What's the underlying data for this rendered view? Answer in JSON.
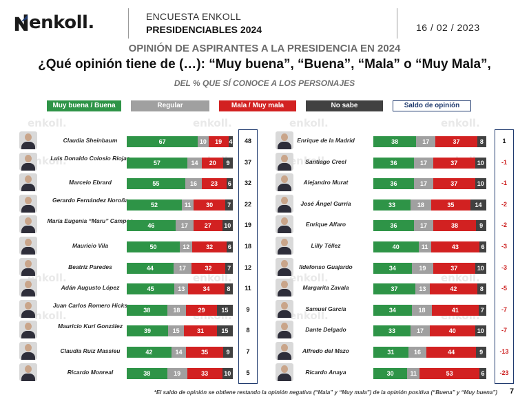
{
  "header": {
    "brand": "enkoll.",
    "survey_line1": "ENCUESTA ENKOLL",
    "survey_line2": "PRESIDENCIABLES 2024",
    "date": "16 / 02 / 2023"
  },
  "titles": {
    "line1": "OPINIÓN DE ASPIRANTES A LA PRESIDENCIA EN 2024",
    "line2": "¿Qué opinión tiene de (…): “Muy buena”, “Buena”, “Mala” o “Muy Mala”,",
    "line3": "DEL % QUE SÍ CONOCE A LOS PERSONAJES"
  },
  "legend": {
    "good": "Muy buena / Buena",
    "regular": "Regular",
    "bad": "Mala / Muy mala",
    "unknown": "No sabe",
    "saldo": "Saldo de opinión"
  },
  "colors": {
    "good": "#2e9447",
    "regular": "#a0a0a0",
    "bad": "#d22121",
    "unknown": "#414141",
    "saldo_border": "#1f3a6e",
    "negative_text": "#cc1c1c"
  },
  "watermark": "enkoll.",
  "footnote": "*El saldo de opinión se obtiene restando la opinión negativa (“Mala” y “Muy mala”) de la opinión positiva (“Buena” y “Muy buena”)",
  "page_number": "7",
  "chart_data": {
    "type": "bar",
    "stacked": true,
    "orientation": "horizontal",
    "segments": [
      "Muy buena / Buena",
      "Regular",
      "Mala / Muy mala",
      "No sabe"
    ],
    "left": [
      {
        "name": "Claudia Sheinbaum",
        "values": [
          67,
          10,
          19,
          4
        ],
        "saldo": "48"
      },
      {
        "name": "Luis Donaldo Colosio Riojas",
        "values": [
          57,
          14,
          20,
          9
        ],
        "saldo": "37"
      },
      {
        "name": "Marcelo Ebrard",
        "values": [
          55,
          16,
          23,
          6
        ],
        "saldo": "32"
      },
      {
        "name": "Gerardo Fernández Noroña",
        "values": [
          52,
          11,
          30,
          7
        ],
        "saldo": "22"
      },
      {
        "name": "María Eugenia “Maru” Campos",
        "values": [
          46,
          17,
          27,
          10
        ],
        "saldo": "19"
      },
      {
        "name": "Mauricio Vila",
        "values": [
          50,
          12,
          32,
          6
        ],
        "saldo": "18"
      },
      {
        "name": "Beatriz Paredes",
        "values": [
          44,
          17,
          32,
          7
        ],
        "saldo": "12"
      },
      {
        "name": "Adán Augusto López",
        "values": [
          45,
          13,
          34,
          8
        ],
        "saldo": "11"
      },
      {
        "name": "Juan Carlos Romero Hicks",
        "values": [
          38,
          18,
          29,
          15
        ],
        "saldo": "9"
      },
      {
        "name": "Mauricio Kuri González",
        "values": [
          39,
          15,
          31,
          15
        ],
        "saldo": "8"
      },
      {
        "name": "Claudia Ruiz Massieu",
        "values": [
          42,
          14,
          35,
          9
        ],
        "saldo": "7"
      },
      {
        "name": "Ricardo Monreal",
        "values": [
          38,
          19,
          33,
          10
        ],
        "saldo": "5"
      }
    ],
    "right": [
      {
        "name": "Enrique de la Madrid",
        "values": [
          38,
          17,
          37,
          8
        ],
        "saldo": "1"
      },
      {
        "name": "Santiago Creel",
        "values": [
          36,
          17,
          37,
          10
        ],
        "saldo": "-1"
      },
      {
        "name": "Alejandro Murat",
        "values": [
          36,
          17,
          37,
          10
        ],
        "saldo": "-1"
      },
      {
        "name": "José Ángel Gurría",
        "values": [
          33,
          18,
          35,
          14
        ],
        "saldo": "-2"
      },
      {
        "name": "Enrique Alfaro",
        "values": [
          36,
          17,
          38,
          9
        ],
        "saldo": "-2"
      },
      {
        "name": "Lilly Téllez",
        "values": [
          40,
          11,
          43,
          6
        ],
        "saldo": "-3"
      },
      {
        "name": "Ildefonso Guajardo",
        "values": [
          34,
          19,
          37,
          10
        ],
        "saldo": "-3"
      },
      {
        "name": "Margarita Zavala",
        "values": [
          37,
          13,
          42,
          8
        ],
        "saldo": "-5"
      },
      {
        "name": "Samuel García",
        "values": [
          34,
          18,
          41,
          7
        ],
        "saldo": "-7"
      },
      {
        "name": "Dante Delgado",
        "values": [
          33,
          17,
          40,
          10
        ],
        "saldo": "-7"
      },
      {
        "name": "Alfredo del Mazo",
        "values": [
          31,
          16,
          44,
          9
        ],
        "saldo": "-13"
      },
      {
        "name": "Ricardo Anaya",
        "values": [
          30,
          11,
          53,
          6
        ],
        "saldo": "-23"
      }
    ]
  }
}
